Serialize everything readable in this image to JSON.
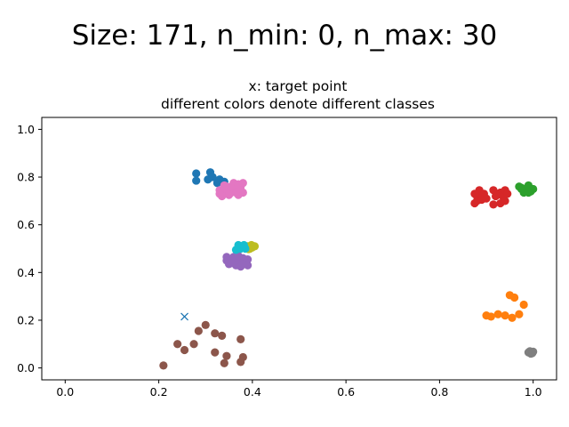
{
  "chart_data": {
    "type": "scatter",
    "suptitle": "Size: 171, n_min: 0, n_max: 30",
    "title_lines": [
      "x: target point",
      "different colors denote different classes"
    ],
    "xlabel": "",
    "ylabel": "",
    "xlim": [
      -0.05,
      1.05
    ],
    "ylim": [
      -0.05,
      1.05
    ],
    "xticks": [
      0.0,
      0.2,
      0.4,
      0.6,
      0.8,
      1.0
    ],
    "yticks": [
      0.0,
      0.2,
      0.4,
      0.6,
      0.8,
      1.0
    ],
    "grid": false,
    "target_point": {
      "x": 0.255,
      "y": 0.215,
      "marker": "x",
      "color": "#1f77b4"
    },
    "series": [
      {
        "color": "#1f77b4",
        "points": [
          [
            0.28,
            0.815
          ],
          [
            0.31,
            0.82
          ],
          [
            0.28,
            0.785
          ],
          [
            0.305,
            0.79
          ],
          [
            0.33,
            0.79
          ],
          [
            0.315,
            0.8
          ],
          [
            0.34,
            0.78
          ],
          [
            0.325,
            0.775
          ]
        ]
      },
      {
        "color": "#ff7f0e",
        "points": [
          [
            0.95,
            0.305
          ],
          [
            0.96,
            0.295
          ],
          [
            0.98,
            0.265
          ],
          [
            0.9,
            0.22
          ],
          [
            0.91,
            0.215
          ],
          [
            0.925,
            0.225
          ],
          [
            0.94,
            0.22
          ],
          [
            0.955,
            0.21
          ],
          [
            0.97,
            0.225
          ]
        ]
      },
      {
        "color": "#2ca02c",
        "points": [
          [
            0.97,
            0.76
          ],
          [
            0.975,
            0.755
          ],
          [
            0.985,
            0.745
          ],
          [
            0.99,
            0.765
          ],
          [
            0.995,
            0.74
          ],
          [
            0.98,
            0.735
          ],
          [
            0.975,
            0.75
          ],
          [
            1.0,
            0.75
          ],
          [
            0.99,
            0.735
          ]
        ]
      },
      {
        "color": "#d62728",
        "points": [
          [
            0.88,
            0.72
          ],
          [
            0.885,
            0.745
          ],
          [
            0.895,
            0.73
          ],
          [
            0.9,
            0.71
          ],
          [
            0.875,
            0.69
          ],
          [
            0.88,
            0.7
          ],
          [
            0.915,
            0.745
          ],
          [
            0.92,
            0.72
          ],
          [
            0.93,
            0.735
          ],
          [
            0.935,
            0.72
          ],
          [
            0.94,
            0.745
          ],
          [
            0.945,
            0.73
          ],
          [
            0.915,
            0.685
          ],
          [
            0.93,
            0.69
          ],
          [
            0.94,
            0.7
          ],
          [
            0.89,
            0.705
          ],
          [
            0.875,
            0.73
          ]
        ]
      },
      {
        "color": "#9467bd",
        "points": [
          [
            0.345,
            0.465
          ],
          [
            0.36,
            0.45
          ],
          [
            0.37,
            0.445
          ],
          [
            0.38,
            0.46
          ],
          [
            0.39,
            0.455
          ],
          [
            0.35,
            0.435
          ],
          [
            0.365,
            0.43
          ],
          [
            0.375,
            0.425
          ],
          [
            0.39,
            0.43
          ],
          [
            0.345,
            0.45
          ],
          [
            0.385,
            0.44
          ],
          [
            0.36,
            0.465
          ],
          [
            0.37,
            0.47
          ],
          [
            0.38,
            0.435
          ],
          [
            0.355,
            0.44
          ]
        ]
      },
      {
        "color": "#8c564b",
        "points": [
          [
            0.21,
            0.01
          ],
          [
            0.24,
            0.1
          ],
          [
            0.255,
            0.075
          ],
          [
            0.275,
            0.1
          ],
          [
            0.285,
            0.155
          ],
          [
            0.3,
            0.18
          ],
          [
            0.32,
            0.145
          ],
          [
            0.335,
            0.135
          ],
          [
            0.32,
            0.065
          ],
          [
            0.345,
            0.05
          ],
          [
            0.34,
            0.02
          ],
          [
            0.375,
            0.12
          ],
          [
            0.375,
            0.025
          ],
          [
            0.38,
            0.045
          ]
        ]
      },
      {
        "color": "#e377c2",
        "points": [
          [
            0.33,
            0.745
          ],
          [
            0.34,
            0.73
          ],
          [
            0.345,
            0.76
          ],
          [
            0.355,
            0.735
          ],
          [
            0.36,
            0.775
          ],
          [
            0.365,
            0.745
          ],
          [
            0.37,
            0.725
          ],
          [
            0.375,
            0.76
          ],
          [
            0.38,
            0.775
          ],
          [
            0.38,
            0.735
          ],
          [
            0.335,
            0.72
          ],
          [
            0.345,
            0.75
          ],
          [
            0.355,
            0.76
          ],
          [
            0.365,
            0.735
          ],
          [
            0.37,
            0.77
          ],
          [
            0.35,
            0.725
          ],
          [
            0.33,
            0.73
          ],
          [
            0.375,
            0.745
          ],
          [
            0.34,
            0.765
          ]
        ]
      },
      {
        "color": "#7f7f7f",
        "points": [
          [
            0.99,
            0.065
          ],
          [
            0.995,
            0.06
          ],
          [
            1.0,
            0.068
          ],
          [
            0.993,
            0.07
          ],
          [
            0.998,
            0.062
          ]
        ]
      },
      {
        "color": "#bcbd22",
        "points": [
          [
            0.39,
            0.51
          ],
          [
            0.395,
            0.5
          ],
          [
            0.4,
            0.505
          ],
          [
            0.405,
            0.51
          ],
          [
            0.398,
            0.515
          ],
          [
            0.392,
            0.498
          ]
        ]
      },
      {
        "color": "#17becf",
        "points": [
          [
            0.37,
            0.515
          ],
          [
            0.375,
            0.5
          ],
          [
            0.38,
            0.51
          ],
          [
            0.385,
            0.5
          ],
          [
            0.372,
            0.505
          ],
          [
            0.382,
            0.515
          ],
          [
            0.365,
            0.495
          ]
        ]
      }
    ]
  }
}
